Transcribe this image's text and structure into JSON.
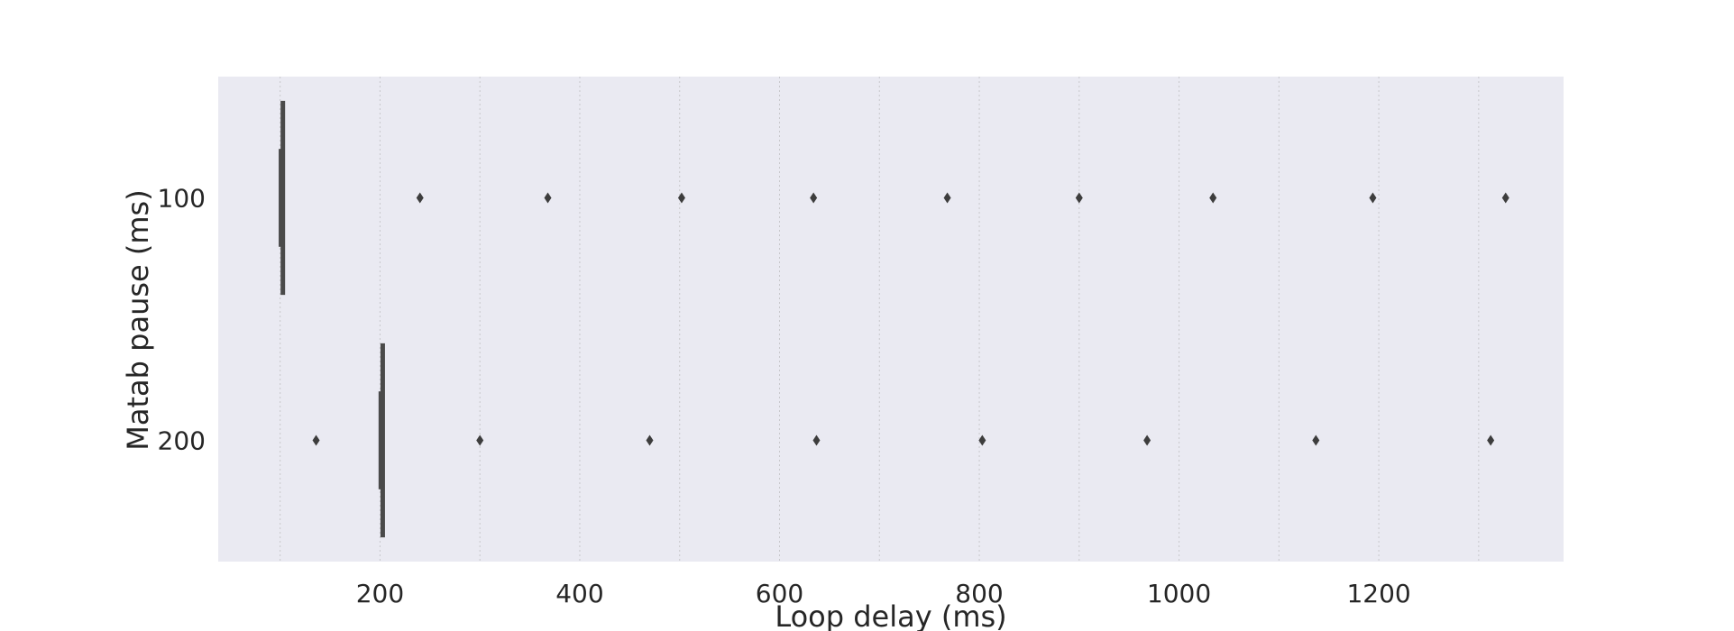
{
  "chart_data": {
    "type": "box",
    "orientation": "horizontal",
    "xlabel": "Loop delay (ms)",
    "ylabel": "Matab pause (ms)",
    "xlim": [
      38,
      1385
    ],
    "xticks": [
      200,
      400,
      600,
      800,
      1000,
      1200
    ],
    "categories": [
      "100",
      "200"
    ],
    "grid": "vertical dotted",
    "background": "#eaeaf2",
    "box_color": "#4a4a4a",
    "series": [
      {
        "category": "100",
        "q1": 99,
        "median": 100,
        "q3": 101,
        "whisker_low": 99,
        "whisker_high": 101,
        "outliers": [
          240,
          368,
          502,
          634,
          768,
          900,
          1034,
          1194,
          1327
        ]
      },
      {
        "category": "200",
        "q1": 199,
        "median": 200,
        "q3": 201,
        "whisker_low": 199,
        "whisker_high": 201,
        "outliers": [
          136,
          300,
          470,
          637,
          803,
          968,
          1137,
          1312
        ]
      }
    ]
  }
}
